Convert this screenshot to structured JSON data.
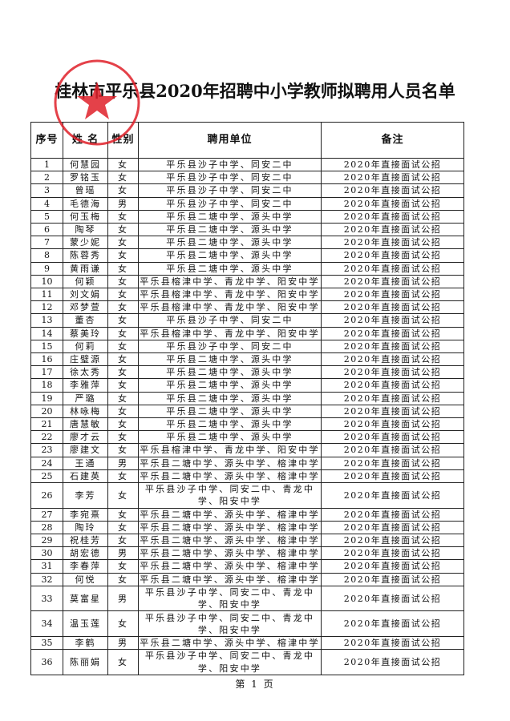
{
  "title": "桂林市平乐县2020年招聘中小学教师拟聘用人员名单",
  "stamp": {
    "text": "平乐县教育局",
    "color": "#e0202a"
  },
  "headers": {
    "index": "序号",
    "name": "姓 名",
    "sex": "性别",
    "unit": "聘用单位",
    "note": "备注"
  },
  "rows": [
    {
      "no": "1",
      "name": "何慧园",
      "sex": "女",
      "unit": "平乐县沙子中学、同安二中",
      "note": "2020年直接面试公招"
    },
    {
      "no": "2",
      "name": "罗铭玉",
      "sex": "女",
      "unit": "平乐县沙子中学、同安二中",
      "note": "2020年直接面试公招"
    },
    {
      "no": "3",
      "name": "曾瑶",
      "sex": "女",
      "unit": "平乐县沙子中学、同安二中",
      "note": "2020年直接面试公招"
    },
    {
      "no": "4",
      "name": "毛德海",
      "sex": "男",
      "unit": "平乐县沙子中学、同安二中",
      "note": "2020年直接面试公招"
    },
    {
      "no": "5",
      "name": "何玉梅",
      "sex": "女",
      "unit": "平乐县二塘中学、源头中学",
      "note": "2020年直接面试公招"
    },
    {
      "no": "6",
      "name": "陶琴",
      "sex": "女",
      "unit": "平乐县二塘中学、源头中学",
      "note": "2020年直接面试公招"
    },
    {
      "no": "7",
      "name": "蒙少妮",
      "sex": "女",
      "unit": "平乐县二塘中学、源头中学",
      "note": "2020年直接面试公招"
    },
    {
      "no": "8",
      "name": "陈蓉秀",
      "sex": "女",
      "unit": "平乐县二塘中学、源头中学",
      "note": "2020年直接面试公招"
    },
    {
      "no": "9",
      "name": "黄雨谦",
      "sex": "女",
      "unit": "平乐县二塘中学、源头中学",
      "note": "2020年直接面试公招"
    },
    {
      "no": "10",
      "name": "何颖",
      "sex": "女",
      "unit": "平乐县榕津中学、青龙中学、阳安中学",
      "note": "2020年直接面试公招"
    },
    {
      "no": "11",
      "name": "刘文娟",
      "sex": "女",
      "unit": "平乐县榕津中学、青龙中学、阳安中学",
      "note": "2020年直接面试公招"
    },
    {
      "no": "12",
      "name": "邓梦萱",
      "sex": "女",
      "unit": "平乐县榕津中学、青龙中学、阳安中学",
      "note": "2020年直接面试公招"
    },
    {
      "no": "13",
      "name": "董杏",
      "sex": "女",
      "unit": "平乐县沙子中学、同安二中",
      "note": "2020年直接面试公招"
    },
    {
      "no": "14",
      "name": "蔡美玲",
      "sex": "女",
      "unit": "平乐县榕津中学、青龙中学、阳安中学",
      "note": "2020年直接面试公招"
    },
    {
      "no": "15",
      "name": "何莉",
      "sex": "女",
      "unit": "平乐县沙子中学、同安二中",
      "note": "2020年直接面试公招"
    },
    {
      "no": "16",
      "name": "庄璧源",
      "sex": "女",
      "unit": "平乐县二塘中学、源头中学",
      "note": "2020年直接面试公招"
    },
    {
      "no": "17",
      "name": "徐太秀",
      "sex": "女",
      "unit": "平乐县二塘中学、源头中学",
      "note": "2020年直接面试公招"
    },
    {
      "no": "18",
      "name": "李雅萍",
      "sex": "女",
      "unit": "平乐县二塘中学、源头中学",
      "note": "2020年直接面试公招"
    },
    {
      "no": "19",
      "name": "严璐",
      "sex": "女",
      "unit": "平乐县二塘中学、源头中学",
      "note": "2020年直接面试公招"
    },
    {
      "no": "20",
      "name": "林咏梅",
      "sex": "女",
      "unit": "平乐县二塘中学、源头中学",
      "note": "2020年直接面试公招"
    },
    {
      "no": "21",
      "name": "唐慧敏",
      "sex": "女",
      "unit": "平乐县二塘中学、源头中学",
      "note": "2020年直接面试公招"
    },
    {
      "no": "22",
      "name": "廖才云",
      "sex": "女",
      "unit": "平乐县二塘中学、源头中学",
      "note": "2020年直接面试公招"
    },
    {
      "no": "23",
      "name": "廖建文",
      "sex": "女",
      "unit": "平乐县榕津中学、青龙中学、阳安中学",
      "note": "2020年直接面试公招"
    },
    {
      "no": "24",
      "name": "王通",
      "sex": "男",
      "unit": "平乐县二塘中学、源头中学、榕津中学",
      "note": "2020年直接面试公招"
    },
    {
      "no": "25",
      "name": "石建英",
      "sex": "女",
      "unit": "平乐县二塘中学、源头中学、榕津中学",
      "note": "2020年直接面试公招"
    },
    {
      "no": "26",
      "name": "李芳",
      "sex": "女",
      "unit": "平乐县沙子中学、同安二中、青龙中学、阳安中学",
      "note": "2020年直接面试公招"
    },
    {
      "no": "27",
      "name": "李宛熹",
      "sex": "女",
      "unit": "平乐县二塘中学、源头中学、榕津中学",
      "note": "2020年直接面试公招"
    },
    {
      "no": "28",
      "name": "陶玲",
      "sex": "女",
      "unit": "平乐县二塘中学、源头中学、榕津中学",
      "note": "2020年直接面试公招"
    },
    {
      "no": "29",
      "name": "祝桂芳",
      "sex": "女",
      "unit": "平乐县二塘中学、源头中学、榕津中学",
      "note": "2020年直接面试公招"
    },
    {
      "no": "30",
      "name": "胡宏德",
      "sex": "男",
      "unit": "平乐县二塘中学、源头中学、榕津中学",
      "note": "2020年直接面试公招"
    },
    {
      "no": "31",
      "name": "李春萍",
      "sex": "女",
      "unit": "平乐县二塘中学、源头中学、榕津中学",
      "note": "2020年直接面试公招"
    },
    {
      "no": "32",
      "name": "何悦",
      "sex": "女",
      "unit": "平乐县二塘中学、源头中学、榕津中学",
      "note": "2020年直接面试公招"
    },
    {
      "no": "33",
      "name": "莫富星",
      "sex": "男",
      "unit": "平乐县沙子中学、同安二中、青龙中学、阳安中学",
      "note": "2020年直接面试公招"
    },
    {
      "no": "34",
      "name": "温玉莲",
      "sex": "女",
      "unit": "平乐县沙子中学、同安二中、青龙中学、阳安中学",
      "note": "2020年直接面试公招"
    },
    {
      "no": "35",
      "name": "李鹤",
      "sex": "男",
      "unit": "平乐县二塘中学、源头中学、榕津中学",
      "note": "2020年直接面试公招"
    },
    {
      "no": "36",
      "name": "陈丽娟",
      "sex": "女",
      "unit": "平乐县沙子中学、同安二中、青龙中学、阳安中学",
      "note": "2020年直接面试公招"
    }
  ],
  "footer": "第 1 页"
}
